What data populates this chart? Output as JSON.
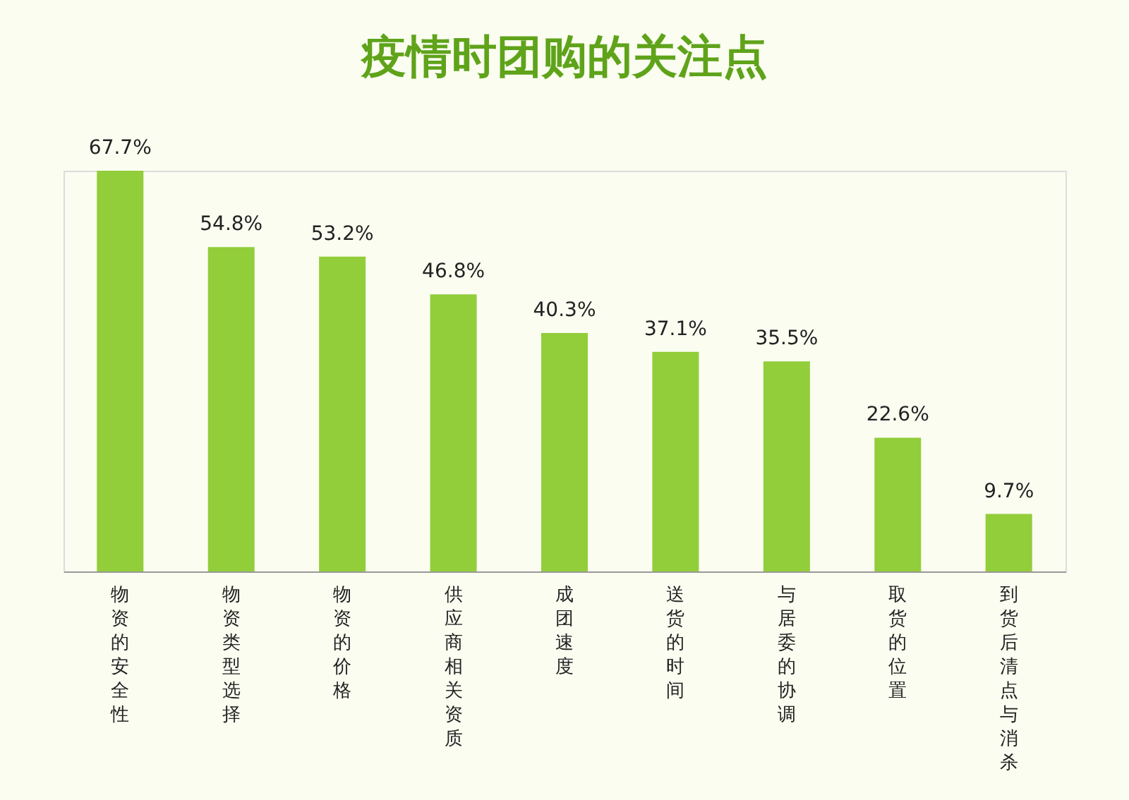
{
  "chart_data": {
    "type": "bar",
    "title": "疫情时团购的关注点",
    "categories": [
      "物资的安全性",
      "物资类型选择",
      "物资的价格",
      "供应商相关资质",
      "成团速度",
      "送货的时间",
      "与居委的协调",
      "取货的位置",
      "到货后清点与消杀"
    ],
    "values": [
      67.7,
      54.8,
      53.2,
      46.8,
      40.3,
      37.1,
      35.5,
      22.6,
      9.7
    ],
    "value_labels": [
      "67.7%",
      "54.8%",
      "53.2%",
      "46.8%",
      "40.3%",
      "37.1%",
      "35.5%",
      "22.6%",
      "9.7%"
    ],
    "color": "#92cd3a",
    "grid": false,
    "tick_labels": "x"
  }
}
